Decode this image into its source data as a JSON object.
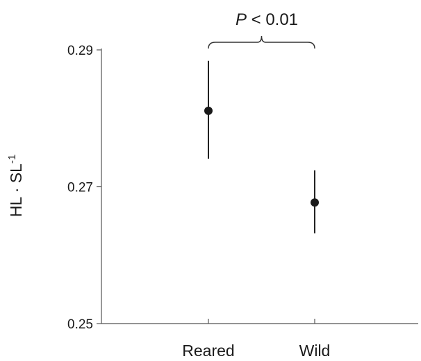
{
  "chart_data": {
    "type": "scatter",
    "title": "",
    "xlabel": "",
    "ylabel": {
      "main": "HL · SL",
      "superscript": "-1"
    },
    "ylim": [
      0.25,
      0.29
    ],
    "yticks": [
      0.25,
      0.27,
      0.29
    ],
    "ytick_labels": [
      "0.25",
      "0.27",
      "0.29"
    ],
    "categories": [
      "Reared",
      "Wild"
    ],
    "series": [
      {
        "values": [
          0.2811,
          0.2677
        ],
        "error_low": [
          0.2741,
          0.2632
        ],
        "error_high": [
          0.2884,
          0.2724
        ]
      }
    ],
    "annotation": {
      "italic_part": "P",
      "rest": " < 0.01",
      "between": [
        "Reared",
        "Wild"
      ]
    },
    "grid": false,
    "legend": "none"
  }
}
